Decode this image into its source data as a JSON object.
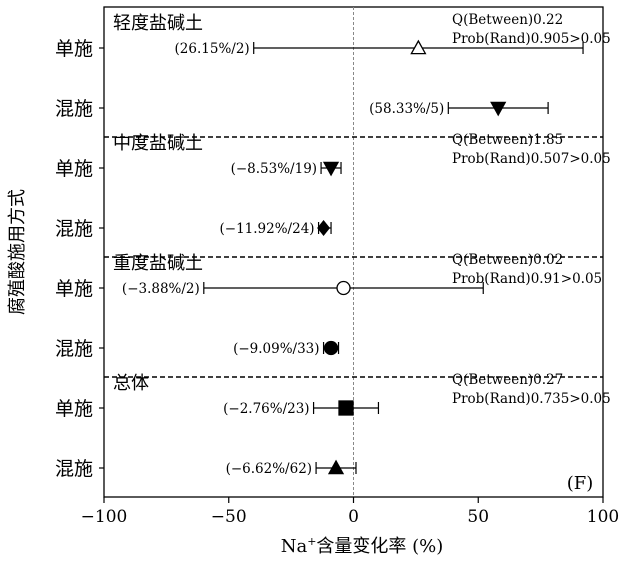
{
  "chart_data": {
    "type": "forest",
    "panel_label": "(F)",
    "xlabel": {
      "pre": "Na",
      "sup": "+",
      "post": "含量变化率 (%)"
    },
    "ylabel": "腐殖酸施用方式",
    "xlim": [
      -100,
      100
    ],
    "xticks": [
      -100,
      -50,
      0,
      50,
      100
    ],
    "xtick_labels": [
      "−100",
      "−50",
      "0",
      "50",
      "100"
    ],
    "zero_line": 0,
    "groups": [
      {
        "label": "轻度盐碱土",
        "stat1": "Q(Between)0.22",
        "stat2": "Prob(Rand)0.905>0.05",
        "rows": [
          {
            "label": "单施",
            "mean": 26,
            "lo": -40,
            "hi": 92,
            "marker": "triangle-up-open",
            "annotation": "(26.15%/2)"
          },
          {
            "label": "混施",
            "mean": 58,
            "lo": 38,
            "hi": 78,
            "marker": "triangle-down",
            "annotation": "(58.33%/5)"
          }
        ]
      },
      {
        "label": "中度盐碱土",
        "stat1": "Q(Between)1.85",
        "stat2": "Prob(Rand)0.507>0.05",
        "rows": [
          {
            "label": "单施",
            "mean": -9,
            "lo": -13,
            "hi": -5,
            "marker": "triangle-down",
            "annotation": "(−8.53%/19)"
          },
          {
            "label": "混施",
            "mean": -12,
            "lo": -14,
            "hi": -9,
            "marker": "diamond",
            "annotation": "(−11.92%/24)"
          }
        ]
      },
      {
        "label": "重度盐碱土",
        "stat1": "Q(Between)0.02",
        "stat2": "Prob(Rand)0.91>0.05",
        "rows": [
          {
            "label": "单施",
            "mean": -4,
            "lo": -60,
            "hi": 52,
            "marker": "circle-open",
            "annotation": "(−3.88%/2)"
          },
          {
            "label": "混施",
            "mean": -9,
            "lo": -12,
            "hi": -6,
            "marker": "circle",
            "annotation": "(−9.09%/33)"
          }
        ]
      },
      {
        "label": "总体",
        "stat1": "Q(Between)0.27",
        "stat2": "Prob(Rand)0.735>0.05",
        "rows": [
          {
            "label": "单施",
            "mean": -3,
            "lo": -16,
            "hi": 10,
            "marker": "square",
            "annotation": "(−2.76%/23)"
          },
          {
            "label": "混施",
            "mean": -7,
            "lo": -15,
            "hi": 1,
            "marker": "triangle-up",
            "annotation": "(−6.62%/62)"
          }
        ]
      }
    ]
  }
}
